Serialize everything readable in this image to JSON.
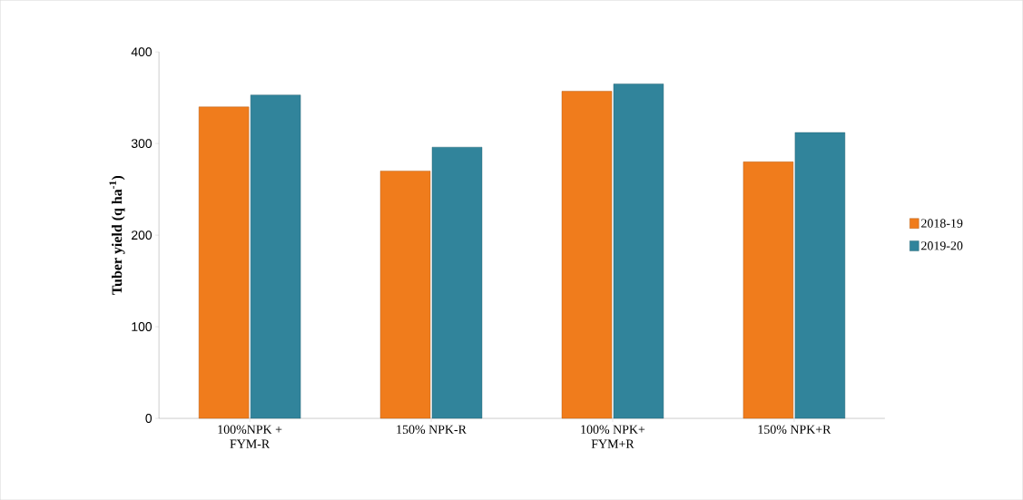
{
  "chart_data": {
    "type": "bar",
    "ylabel": "Tuber yield (q ha$^{-1}$)",
    "categories": [
      "100%NPK + FYM-R",
      "150% NPK-R",
      "100% NPK+ FYM+R",
      "150% NPK+R"
    ],
    "series": [
      {
        "name": "2018-19",
        "color": "#f07c1c",
        "values": [
          340,
          270,
          357,
          280
        ]
      },
      {
        "name": "2019-20",
        "color": "#31849b",
        "values": [
          353,
          296,
          365,
          312
        ]
      }
    ],
    "ylim": [
      0,
      400
    ],
    "yticks": [
      0,
      100,
      200,
      300,
      400
    ],
    "grid": false,
    "legend": "right"
  }
}
